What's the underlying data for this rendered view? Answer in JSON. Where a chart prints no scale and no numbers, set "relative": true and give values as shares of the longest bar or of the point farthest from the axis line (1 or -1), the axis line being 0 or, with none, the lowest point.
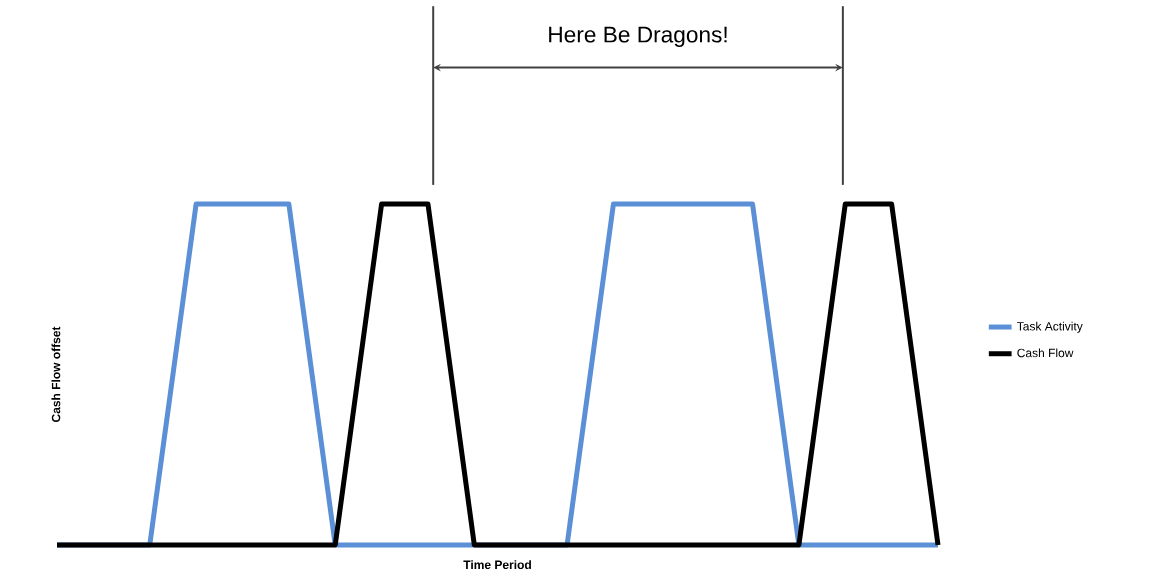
{
  "chart_data": {
    "type": "line",
    "relative": true,
    "xlabel": "Time Period",
    "ylabel": "Cash Flow offset",
    "legend": "right",
    "categories": [
      null,
      null,
      null,
      null,
      null,
      null,
      null,
      null,
      null,
      null,
      null,
      null,
      null,
      null,
      null,
      null,
      null,
      null,
      null,
      null
    ],
    "series": [
      {
        "name": "Task Activity",
        "color": "#5b8fd6",
        "values": [
          0,
          0,
          0,
          1,
          1,
          1,
          0,
          0,
          0,
          0,
          0,
          0,
          1,
          1,
          1,
          1,
          0,
          0,
          0,
          0
        ]
      },
      {
        "name": "Cash Flow",
        "color": "#000000",
        "values": [
          0,
          0,
          0,
          0,
          0,
          0,
          0,
          1,
          1,
          0,
          0,
          0,
          0,
          0,
          0,
          0,
          0,
          1,
          1,
          0
        ]
      }
    ],
    "annotations": [
      "Here Be Dragons!"
    ]
  }
}
